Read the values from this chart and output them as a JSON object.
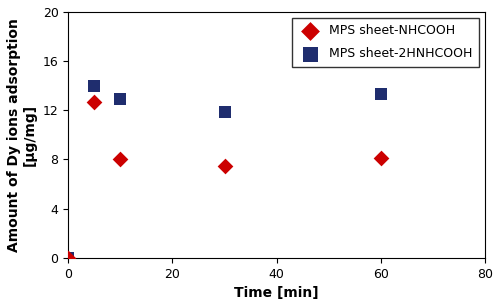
{
  "series1_label": "MPS sheet-NHCOOH",
  "series1_x": [
    0,
    5,
    10,
    30,
    60
  ],
  "series1_y": [
    0,
    12.7,
    8.0,
    7.5,
    8.1
  ],
  "series1_color": "#CC0000",
  "series1_marker": "D",
  "series1_markersize": 8,
  "series2_label": "MPS sheet-2HNHCOOH",
  "series2_x": [
    0,
    5,
    10,
    30,
    60
  ],
  "series2_y": [
    0.0,
    14.0,
    12.9,
    11.9,
    13.3
  ],
  "series2_color": "#1F2D6E",
  "series2_marker": "s",
  "series2_markersize": 9,
  "xlabel": "Time [min]",
  "ylabel": "Amount of Dy ions adsorption\n[μg/mg]",
  "xlim": [
    0,
    80
  ],
  "ylim": [
    0,
    20
  ],
  "xticks": [
    0,
    20,
    40,
    60,
    80
  ],
  "yticks": [
    0,
    4,
    8,
    12,
    16,
    20
  ],
  "axis_fontsize": 10,
  "tick_fontsize": 9,
  "legend_fontsize": 9,
  "fig_width": 5.0,
  "fig_height": 3.07,
  "dpi": 100
}
